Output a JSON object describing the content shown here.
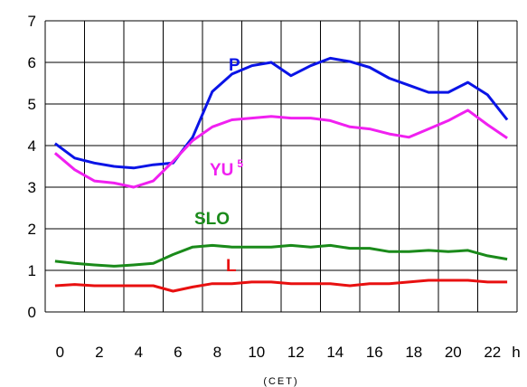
{
  "chart_data": {
    "type": "line",
    "x": [
      0,
      1,
      2,
      3,
      4,
      5,
      6,
      7,
      8,
      9,
      10,
      11,
      12,
      13,
      14,
      15,
      16,
      17,
      18,
      19,
      20,
      21,
      22,
      23
    ],
    "xticks": [
      "0",
      "2",
      "4",
      "6",
      "8",
      "10",
      "12",
      "14",
      "16",
      "18",
      "20",
      "22"
    ],
    "xunit": "h",
    "xcaption": "(CET)",
    "yticks": [
      "0",
      "1",
      "2",
      "3",
      "4",
      "5",
      "6",
      "7"
    ],
    "ylim": [
      0,
      7
    ],
    "xlim": [
      0,
      23
    ],
    "grid": true,
    "series": [
      {
        "name": "P",
        "color": "#0a14e6",
        "values": [
          4.05,
          3.7,
          3.58,
          3.5,
          3.46,
          3.54,
          3.58,
          4.2,
          5.3,
          5.72,
          5.92,
          6.0,
          5.68,
          5.92,
          6.1,
          6.02,
          5.88,
          5.62,
          5.45,
          5.28,
          5.28,
          5.52,
          5.22,
          4.62
        ]
      },
      {
        "name": "YU",
        "superscript": "5",
        "color": "#f020f0",
        "values": [
          3.82,
          3.42,
          3.15,
          3.1,
          3.0,
          3.15,
          3.62,
          4.12,
          4.45,
          4.62,
          4.66,
          4.7,
          4.66,
          4.66,
          4.6,
          4.45,
          4.4,
          4.28,
          4.2,
          4.4,
          4.6,
          4.85,
          4.5,
          4.18
        ]
      },
      {
        "name": "SLO",
        "color": "#1a8a1a",
        "values": [
          1.22,
          1.17,
          1.13,
          1.1,
          1.13,
          1.17,
          1.38,
          1.56,
          1.6,
          1.56,
          1.56,
          1.56,
          1.6,
          1.56,
          1.6,
          1.53,
          1.53,
          1.45,
          1.45,
          1.48,
          1.45,
          1.48,
          1.35,
          1.27
        ]
      },
      {
        "name": "L",
        "color": "#e81010",
        "values": [
          0.63,
          0.66,
          0.63,
          0.63,
          0.63,
          0.63,
          0.5,
          0.6,
          0.68,
          0.68,
          0.72,
          0.72,
          0.68,
          0.68,
          0.68,
          0.63,
          0.68,
          0.68,
          0.72,
          0.76,
          0.76,
          0.76,
          0.72,
          0.72
        ]
      }
    ]
  }
}
